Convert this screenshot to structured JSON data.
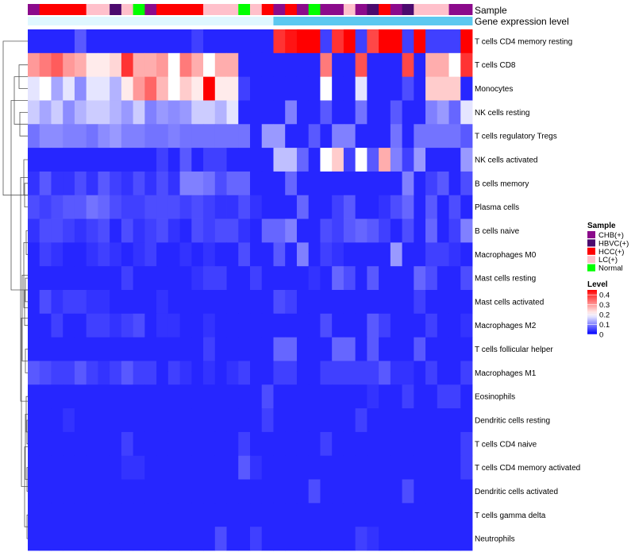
{
  "chart_data": {
    "type": "heatmap",
    "title": "",
    "annotation_tracks": [
      {
        "name": "Sample",
        "label": "Sample"
      },
      {
        "name": "Gene expression level",
        "label": "Gene expression level"
      }
    ],
    "sample_groups": [
      "CHB",
      "HCC",
      "HCC",
      "HCC",
      "HCC",
      "LC",
      "LC",
      "HBVC",
      "LC",
      "Normal",
      "CHB",
      "HCC",
      "HCC",
      "HCC",
      "HCC",
      "LC",
      "LC",
      "LC",
      "Normal",
      "LC",
      "HCC",
      "CHB",
      "HCC",
      "CHB",
      "Normal",
      "CHB",
      "CHB",
      "LC",
      "CHB",
      "HBVC",
      "HCC",
      "CHB",
      "HBVC",
      "LC",
      "LC",
      "LC",
      "CHB",
      "CHB"
    ],
    "expression_level_track": [
      0,
      0,
      0,
      0,
      0,
      0,
      0,
      0,
      0,
      0,
      0,
      0,
      0,
      0,
      0,
      0,
      0,
      0,
      0,
      0,
      0,
      1,
      1,
      1,
      1,
      1,
      1,
      1,
      1,
      1,
      1,
      1,
      1,
      1,
      1,
      1,
      1,
      1
    ],
    "rows": [
      "T cells CD4 memory resting",
      "T cells CD8",
      "Monocytes",
      "NK cells resting",
      "T cells regulatory  Tregs",
      "NK cells activated",
      "B cells memory",
      "Plasma cells",
      "B cells naive",
      "Macrophages M0",
      "Mast cells resting",
      "Mast cells activated",
      "Macrophages M2",
      "T cells follicular helper",
      "Macrophages M1",
      "Eosinophils",
      "Dendritic cells resting",
      "T cells CD4 naive",
      "T cells CD4 memory activated",
      "Dendritic cells activated",
      "T cells gamma delta",
      "Neutrophils"
    ],
    "values": [
      [
        0.03,
        0.03,
        0.03,
        0.03,
        0.07,
        0.03,
        0.03,
        0.03,
        0.03,
        0.03,
        0.03,
        0.03,
        0.03,
        0.03,
        0.05,
        0.03,
        0.03,
        0.03,
        0.03,
        0.03,
        0.03,
        0.4,
        0.43,
        0.45,
        0.45,
        0.05,
        0.4,
        0.45,
        0.05,
        0.38,
        0.45,
        0.45,
        0.05,
        0.45,
        0.05,
        0.05,
        0.05,
        0.45
      ],
      [
        0.3,
        0.33,
        0.36,
        0.3,
        0.28,
        0.22,
        0.22,
        0.24,
        0.4,
        0.28,
        0.28,
        0.3,
        0.2,
        0.33,
        0.28,
        0.2,
        0.28,
        0.28,
        0.03,
        0.03,
        0.03,
        0.03,
        0.03,
        0.03,
        0.03,
        0.33,
        0.03,
        0.03,
        0.37,
        0.03,
        0.03,
        0.03,
        0.38,
        0.03,
        0.28,
        0.28,
        0.2,
        0.4
      ],
      [
        0.18,
        0.2,
        0.13,
        0.18,
        0.11,
        0.18,
        0.18,
        0.14,
        0.22,
        0.3,
        0.35,
        0.27,
        0.2,
        0.25,
        0.22,
        0.45,
        0.22,
        0.22,
        0.05,
        0.03,
        0.03,
        0.03,
        0.03,
        0.03,
        0.03,
        0.2,
        0.03,
        0.03,
        0.18,
        0.03,
        0.03,
        0.03,
        0.06,
        0.03,
        0.25,
        0.25,
        0.25,
        0.03
      ],
      [
        0.16,
        0.13,
        0.16,
        0.11,
        0.14,
        0.16,
        0.16,
        0.14,
        0.12,
        0.16,
        0.1,
        0.12,
        0.11,
        0.12,
        0.16,
        0.16,
        0.14,
        0.18,
        0.03,
        0.03,
        0.03,
        0.03,
        0.1,
        0.03,
        0.03,
        0.07,
        0.03,
        0.03,
        0.09,
        0.03,
        0.03,
        0.07,
        0.03,
        0.03,
        0.1,
        0.12,
        0.08,
        0.18
      ],
      [
        0.09,
        0.11,
        0.11,
        0.1,
        0.1,
        0.09,
        0.11,
        0.12,
        0.1,
        0.1,
        0.09,
        0.09,
        0.1,
        0.09,
        0.09,
        0.09,
        0.09,
        0.09,
        0.09,
        0.03,
        0.12,
        0.12,
        0.03,
        0.03,
        0.07,
        0.03,
        0.1,
        0.1,
        0.03,
        0.03,
        0.03,
        0.09,
        0.03,
        0.09,
        0.09,
        0.09,
        0.09,
        0.07
      ],
      [
        0.03,
        0.03,
        0.03,
        0.03,
        0.03,
        0.03,
        0.03,
        0.03,
        0.03,
        0.03,
        0.03,
        0.05,
        0.03,
        0.07,
        0.03,
        0.05,
        0.05,
        0.03,
        0.03,
        0.03,
        0.03,
        0.15,
        0.15,
        0.08,
        0.03,
        0.2,
        0.25,
        0.05,
        0.2,
        0.07,
        0.28,
        0.1,
        0.05,
        0.12,
        0.03,
        0.03,
        0.03,
        0.12
      ],
      [
        0.04,
        0.07,
        0.04,
        0.04,
        0.06,
        0.04,
        0.07,
        0.05,
        0.04,
        0.06,
        0.04,
        0.06,
        0.04,
        0.1,
        0.1,
        0.09,
        0.06,
        0.08,
        0.08,
        0.03,
        0.03,
        0.03,
        0.08,
        0.03,
        0.03,
        0.03,
        0.03,
        0.03,
        0.03,
        0.03,
        0.03,
        0.03,
        0.1,
        0.03,
        0.05,
        0.07,
        0.03,
        0.06
      ],
      [
        0.06,
        0.05,
        0.06,
        0.07,
        0.07,
        0.09,
        0.08,
        0.06,
        0.05,
        0.05,
        0.06,
        0.06,
        0.06,
        0.05,
        0.06,
        0.05,
        0.04,
        0.04,
        0.06,
        0.04,
        0.03,
        0.03,
        0.03,
        0.08,
        0.03,
        0.03,
        0.05,
        0.07,
        0.03,
        0.03,
        0.04,
        0.06,
        0.08,
        0.03,
        0.07,
        0.03,
        0.06,
        0.03
      ],
      [
        0.04,
        0.06,
        0.06,
        0.05,
        0.04,
        0.05,
        0.06,
        0.03,
        0.06,
        0.04,
        0.05,
        0.06,
        0.04,
        0.03,
        0.06,
        0.05,
        0.06,
        0.06,
        0.04,
        0.03,
        0.08,
        0.08,
        0.1,
        0.03,
        0.03,
        0.06,
        0.05,
        0.07,
        0.08,
        0.07,
        0.05,
        0.03,
        0.06,
        0.03,
        0.08,
        0.03,
        0.05,
        0.1
      ],
      [
        0.03,
        0.05,
        0.04,
        0.03,
        0.03,
        0.04,
        0.05,
        0.04,
        0.03,
        0.04,
        0.05,
        0.03,
        0.03,
        0.04,
        0.03,
        0.04,
        0.03,
        0.03,
        0.06,
        0.03,
        0.03,
        0.07,
        0.03,
        0.1,
        0.03,
        0.05,
        0.04,
        0.03,
        0.03,
        0.03,
        0.03,
        0.12,
        0.03,
        0.03,
        0.05,
        0.05,
        0.04,
        0.03
      ],
      [
        0.03,
        0.03,
        0.03,
        0.03,
        0.03,
        0.03,
        0.03,
        0.03,
        0.05,
        0.03,
        0.03,
        0.03,
        0.03,
        0.03,
        0.04,
        0.05,
        0.05,
        0.03,
        0.03,
        0.05,
        0.03,
        0.03,
        0.03,
        0.03,
        0.04,
        0.03,
        0.08,
        0.06,
        0.03,
        0.07,
        0.03,
        0.03,
        0.03,
        0.08,
        0.06,
        0.03,
        0.03,
        0.06
      ],
      [
        0.03,
        0.06,
        0.04,
        0.05,
        0.05,
        0.04,
        0.04,
        0.03,
        0.03,
        0.03,
        0.03,
        0.04,
        0.03,
        0.03,
        0.03,
        0.03,
        0.03,
        0.03,
        0.03,
        0.03,
        0.03,
        0.06,
        0.05,
        0.03,
        0.03,
        0.03,
        0.03,
        0.03,
        0.03,
        0.03,
        0.03,
        0.03,
        0.03,
        0.05,
        0.03,
        0.03,
        0.03,
        0.03
      ],
      [
        0.03,
        0.03,
        0.05,
        0.03,
        0.03,
        0.05,
        0.05,
        0.04,
        0.05,
        0.06,
        0.03,
        0.04,
        0.04,
        0.03,
        0.03,
        0.04,
        0.03,
        0.03,
        0.03,
        0.03,
        0.03,
        0.03,
        0.03,
        0.03,
        0.03,
        0.06,
        0.03,
        0.03,
        0.03,
        0.07,
        0.05,
        0.03,
        0.03,
        0.03,
        0.05,
        0.03,
        0.03,
        0.04
      ],
      [
        0.03,
        0.03,
        0.03,
        0.03,
        0.03,
        0.03,
        0.03,
        0.03,
        0.03,
        0.03,
        0.03,
        0.03,
        0.03,
        0.03,
        0.03,
        0.05,
        0.03,
        0.03,
        0.03,
        0.03,
        0.03,
        0.08,
        0.08,
        0.03,
        0.03,
        0.03,
        0.08,
        0.08,
        0.03,
        0.07,
        0.03,
        0.03,
        0.03,
        0.07,
        0.03,
        0.03,
        0.03,
        0.03
      ],
      [
        0.07,
        0.06,
        0.05,
        0.05,
        0.07,
        0.05,
        0.04,
        0.05,
        0.07,
        0.05,
        0.05,
        0.03,
        0.05,
        0.04,
        0.03,
        0.04,
        0.03,
        0.04,
        0.05,
        0.03,
        0.03,
        0.05,
        0.05,
        0.03,
        0.03,
        0.05,
        0.05,
        0.05,
        0.05,
        0.05,
        0.07,
        0.04,
        0.04,
        0.03,
        0.05,
        0.03,
        0.03,
        0.05
      ],
      [
        0.03,
        0.03,
        0.03,
        0.03,
        0.03,
        0.03,
        0.03,
        0.03,
        0.03,
        0.03,
        0.03,
        0.03,
        0.03,
        0.03,
        0.03,
        0.03,
        0.03,
        0.03,
        0.03,
        0.03,
        0.06,
        0.03,
        0.03,
        0.03,
        0.03,
        0.03,
        0.03,
        0.03,
        0.03,
        0.04,
        0.03,
        0.03,
        0.05,
        0.03,
        0.03,
        0.05,
        0.05,
        0.03
      ],
      [
        0.03,
        0.03,
        0.03,
        0.04,
        0.03,
        0.03,
        0.03,
        0.03,
        0.03,
        0.03,
        0.03,
        0.03,
        0.03,
        0.03,
        0.03,
        0.03,
        0.03,
        0.03,
        0.03,
        0.03,
        0.05,
        0.03,
        0.03,
        0.03,
        0.03,
        0.03,
        0.03,
        0.03,
        0.05,
        0.03,
        0.03,
        0.03,
        0.03,
        0.03,
        0.03,
        0.03,
        0.03,
        0.03
      ],
      [
        0.03,
        0.03,
        0.03,
        0.03,
        0.03,
        0.03,
        0.03,
        0.03,
        0.05,
        0.03,
        0.03,
        0.03,
        0.03,
        0.03,
        0.03,
        0.03,
        0.03,
        0.03,
        0.05,
        0.03,
        0.03,
        0.03,
        0.03,
        0.03,
        0.03,
        0.05,
        0.03,
        0.03,
        0.03,
        0.03,
        0.03,
        0.03,
        0.03,
        0.03,
        0.03,
        0.03,
        0.03,
        0.05
      ],
      [
        0.03,
        0.03,
        0.03,
        0.03,
        0.03,
        0.03,
        0.03,
        0.03,
        0.04,
        0.04,
        0.03,
        0.03,
        0.03,
        0.03,
        0.03,
        0.03,
        0.03,
        0.03,
        0.07,
        0.04,
        0.03,
        0.03,
        0.03,
        0.03,
        0.03,
        0.03,
        0.03,
        0.03,
        0.03,
        0.03,
        0.03,
        0.03,
        0.03,
        0.03,
        0.03,
        0.03,
        0.03,
        0.05
      ],
      [
        0.03,
        0.03,
        0.03,
        0.03,
        0.03,
        0.03,
        0.03,
        0.03,
        0.03,
        0.03,
        0.03,
        0.03,
        0.03,
        0.03,
        0.03,
        0.03,
        0.03,
        0.03,
        0.03,
        0.03,
        0.03,
        0.03,
        0.03,
        0.03,
        0.06,
        0.03,
        0.03,
        0.03,
        0.03,
        0.03,
        0.03,
        0.03,
        0.06,
        0.03,
        0.03,
        0.03,
        0.03,
        0.03
      ],
      [
        0.03,
        0.03,
        0.03,
        0.03,
        0.03,
        0.03,
        0.03,
        0.03,
        0.03,
        0.03,
        0.03,
        0.03,
        0.03,
        0.03,
        0.03,
        0.03,
        0.03,
        0.03,
        0.03,
        0.03,
        0.03,
        0.03,
        0.03,
        0.03,
        0.03,
        0.03,
        0.03,
        0.03,
        0.03,
        0.03,
        0.03,
        0.03,
        0.03,
        0.03,
        0.03,
        0.03,
        0.03,
        0.03
      ],
      [
        0.03,
        0.03,
        0.03,
        0.03,
        0.03,
        0.03,
        0.03,
        0.03,
        0.03,
        0.03,
        0.03,
        0.03,
        0.03,
        0.03,
        0.03,
        0.03,
        0.06,
        0.03,
        0.03,
        0.05,
        0.03,
        0.03,
        0.03,
        0.03,
        0.03,
        0.03,
        0.03,
        0.03,
        0.05,
        0.04,
        0.03,
        0.03,
        0.03,
        0.03,
        0.03,
        0.03,
        0.03,
        0.03
      ]
    ],
    "legend_sample": {
      "title": "Sample",
      "entries": [
        {
          "label": "CHB(+)",
          "key": "CHB",
          "color": "#8B0A8B"
        },
        {
          "label": "HBVC(+)",
          "key": "HBVC",
          "color": "#4B0A6E"
        },
        {
          "label": "HCC(+)",
          "key": "HCC",
          "color": "#FF0000"
        },
        {
          "label": "LC(+)",
          "key": "LC",
          "color": "#FFC0CB"
        },
        {
          "label": "Normal",
          "key": "Normal",
          "color": "#00FF00"
        }
      ]
    },
    "legend_level": {
      "title": "Level",
      "ticks": [
        "0.4",
        "0.3",
        "0.2",
        "0.1",
        "0"
      ],
      "range": [
        0,
        0.45
      ]
    },
    "expression_track_colors": [
      "#E0F7FF",
      "#5CC8F0"
    ],
    "color_scale": {
      "low": "#0000FF",
      "mid": "#FFFFFF",
      "high": "#FF0000",
      "mid_value": 0.2,
      "max": 0.45
    }
  }
}
